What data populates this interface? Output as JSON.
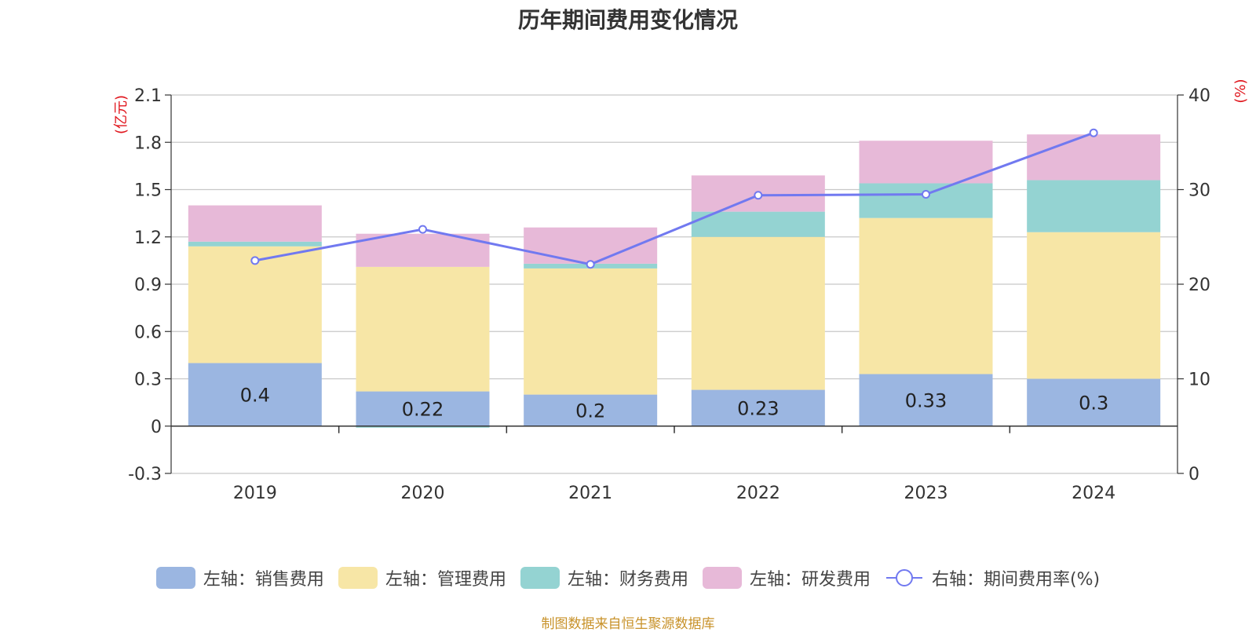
{
  "title": "历年期间费用变化情况",
  "source": "制图数据来自恒生聚源数据库",
  "colors": {
    "sales": "#9bb6e1",
    "admin": "#f7e6a6",
    "finance": "#94d3d2",
    "rd": "#e7b9d8",
    "rate": "#7179f0"
  },
  "chart_data": {
    "type": "bar",
    "stacked": true,
    "categories": [
      "2019",
      "2020",
      "2021",
      "2022",
      "2023",
      "2024"
    ],
    "left_axis": {
      "unit": "(亿元)",
      "ylim": [
        -0.3,
        2.1
      ],
      "ticks": [
        "-0.3",
        "0",
        "0.3",
        "0.6",
        "0.9",
        "1.2",
        "1.5",
        "1.8",
        "2.1"
      ]
    },
    "right_axis": {
      "unit": "(%)",
      "ylim": [
        0,
        40
      ],
      "ticks": [
        "0",
        "10",
        "20",
        "30",
        "40"
      ]
    },
    "series": [
      {
        "name": "左轴：销售费用",
        "key": "sales",
        "values": [
          0.4,
          0.22,
          0.2,
          0.23,
          0.33,
          0.3
        ],
        "labels": [
          "0.4",
          "0.22",
          "0.2",
          "0.23",
          "0.33",
          "0.3"
        ]
      },
      {
        "name": "左轴：管理费用",
        "key": "admin",
        "values": [
          0.74,
          0.79,
          0.8,
          0.97,
          0.99,
          0.93
        ]
      },
      {
        "name": "左轴：财务费用",
        "key": "finance",
        "values": [
          0.03,
          -0.01,
          0.03,
          0.16,
          0.22,
          0.33
        ]
      },
      {
        "name": "左轴：研发费用",
        "key": "rd",
        "values": [
          0.23,
          0.21,
          0.23,
          0.23,
          0.27,
          0.29
        ]
      }
    ],
    "line": {
      "name": "右轴：期间费用率(%)",
      "values": [
        22.5,
        25.8,
        22.1,
        29.4,
        29.5,
        36.0
      ]
    },
    "grid": true,
    "legend_position": "bottom"
  }
}
